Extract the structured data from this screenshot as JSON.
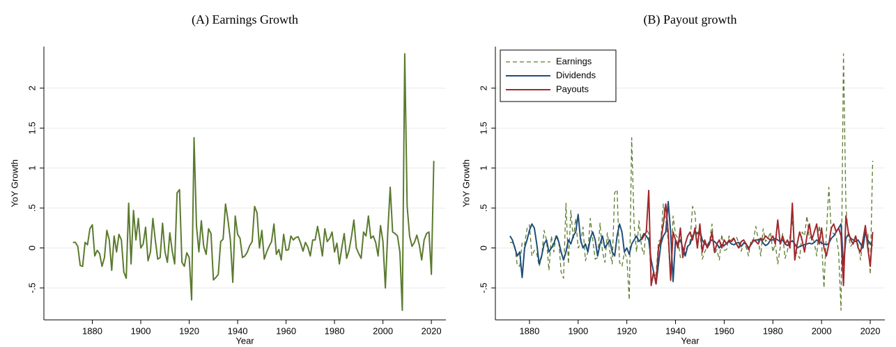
{
  "chart_data": [
    {
      "type": "line",
      "title": "(A) Earnings Growth",
      "xlabel": "Year",
      "ylabel": "YoY Growth",
      "x": [
        1872,
        1873,
        1874,
        1875,
        1876,
        1877,
        1878,
        1879,
        1880,
        1881,
        1882,
        1883,
        1884,
        1885,
        1886,
        1887,
        1888,
        1889,
        1890,
        1891,
        1892,
        1893,
        1894,
        1895,
        1896,
        1897,
        1898,
        1899,
        1900,
        1901,
        1902,
        1903,
        1904,
        1905,
        1906,
        1907,
        1908,
        1909,
        1910,
        1911,
        1912,
        1913,
        1914,
        1915,
        1916,
        1917,
        1918,
        1919,
        1920,
        1921,
        1922,
        1923,
        1924,
        1925,
        1926,
        1927,
        1928,
        1929,
        1930,
        1931,
        1932,
        1933,
        1934,
        1935,
        1936,
        1937,
        1938,
        1939,
        1940,
        1941,
        1942,
        1943,
        1944,
        1945,
        1946,
        1947,
        1948,
        1949,
        1950,
        1951,
        1952,
        1953,
        1954,
        1955,
        1956,
        1957,
        1958,
        1959,
        1960,
        1961,
        1962,
        1963,
        1964,
        1965,
        1966,
        1967,
        1968,
        1969,
        1970,
        1971,
        1972,
        1973,
        1974,
        1975,
        1976,
        1977,
        1978,
        1979,
        1980,
        1981,
        1982,
        1983,
        1984,
        1985,
        1986,
        1987,
        1988,
        1989,
        1990,
        1991,
        1992,
        1993,
        1994,
        1995,
        1996,
        1997,
        1998,
        1999,
        2000,
        2001,
        2002,
        2003,
        2004,
        2005,
        2006,
        2007,
        2008,
        2009,
        2010,
        2011,
        2012,
        2013,
        2014,
        2015,
        2016,
        2017,
        2018,
        2019,
        2020,
        2021
      ],
      "values": [
        0.07,
        0.07,
        0.02,
        -0.22,
        -0.23,
        0.07,
        0.04,
        0.24,
        0.29,
        -0.1,
        -0.03,
        -0.07,
        -0.23,
        -0.12,
        0.22,
        0.1,
        -0.28,
        0.15,
        -0.05,
        0.17,
        0.1,
        -0.3,
        -0.38,
        0.56,
        -0.2,
        0.47,
        0.1,
        0.37,
        0.0,
        0.05,
        0.26,
        -0.16,
        -0.05,
        0.37,
        0.1,
        -0.14,
        -0.12,
        0.31,
        -0.05,
        -0.18,
        0.19,
        -0.04,
        -0.2,
        0.69,
        0.73,
        -0.18,
        -0.23,
        -0.06,
        -0.12,
        -0.65,
        1.38,
        0.28,
        -0.05,
        0.34,
        0.02,
        -0.08,
        0.24,
        0.18,
        -0.4,
        -0.37,
        -0.33,
        0.08,
        0.11,
        0.55,
        0.35,
        0.1,
        -0.43,
        0.4,
        0.17,
        0.12,
        -0.12,
        -0.1,
        -0.05,
        0.03,
        0.08,
        0.52,
        0.44,
        0.0,
        0.22,
        -0.14,
        -0.05,
        0.02,
        0.08,
        0.3,
        -0.08,
        -0.02,
        -0.15,
        0.17,
        -0.03,
        -0.02,
        0.15,
        0.1,
        0.13,
        0.14,
        0.06,
        -0.04,
        0.07,
        0.01,
        -0.1,
        0.1,
        0.1,
        0.27,
        0.1,
        -0.1,
        0.24,
        0.08,
        0.12,
        0.2,
        -0.05,
        0.06,
        -0.2,
        0.0,
        0.18,
        -0.13,
        -0.03,
        0.14,
        0.35,
        0.0,
        -0.07,
        -0.13,
        0.2,
        0.15,
        0.4,
        0.12,
        0.15,
        0.07,
        -0.1,
        0.28,
        0.08,
        -0.5,
        0.2,
        0.76,
        0.2,
        0.18,
        0.15,
        -0.05,
        -0.78,
        2.43,
        0.52,
        0.15,
        0.02,
        0.07,
        0.16,
        0.04,
        -0.15,
        0.1,
        0.18,
        0.2,
        -0.33,
        1.09
      ],
      "color": "#5a7a2e",
      "xlim": [
        1860,
        2026
      ],
      "xticks": [
        1880,
        1900,
        1920,
        1940,
        1960,
        1980,
        2000,
        2020
      ],
      "ylim": [
        -0.9,
        2.52
      ],
      "yticks": [
        {
          "value": -0.5,
          "label": "-.5"
        },
        0,
        {
          "value": 0.5,
          "label": ".5"
        },
        1,
        {
          "value": 1.5,
          "label": "1.5"
        },
        2
      ],
      "grid": true
    },
    {
      "type": "line",
      "title": "(B) Payout growth",
      "xlabel": "Year",
      "ylabel": "YoY Growth",
      "x": [
        1872,
        1873,
        1874,
        1875,
        1876,
        1877,
        1878,
        1879,
        1880,
        1881,
        1882,
        1883,
        1884,
        1885,
        1886,
        1887,
        1888,
        1889,
        1890,
        1891,
        1892,
        1893,
        1894,
        1895,
        1896,
        1897,
        1898,
        1899,
        1900,
        1901,
        1902,
        1903,
        1904,
        1905,
        1906,
        1907,
        1908,
        1909,
        1910,
        1911,
        1912,
        1913,
        1914,
        1915,
        1916,
        1917,
        1918,
        1919,
        1920,
        1921,
        1922,
        1923,
        1924,
        1925,
        1926,
        1927,
        1928,
        1929,
        1930,
        1931,
        1932,
        1933,
        1934,
        1935,
        1936,
        1937,
        1938,
        1939,
        1940,
        1941,
        1942,
        1943,
        1944,
        1945,
        1946,
        1947,
        1948,
        1949,
        1950,
        1951,
        1952,
        1953,
        1954,
        1955,
        1956,
        1957,
        1958,
        1959,
        1960,
        1961,
        1962,
        1963,
        1964,
        1965,
        1966,
        1967,
        1968,
        1969,
        1970,
        1971,
        1972,
        1973,
        1974,
        1975,
        1976,
        1977,
        1978,
        1979,
        1980,
        1981,
        1982,
        1983,
        1984,
        1985,
        1986,
        1987,
        1988,
        1989,
        1990,
        1991,
        1992,
        1993,
        1994,
        1995,
        1996,
        1997,
        1998,
        1999,
        2000,
        2001,
        2002,
        2003,
        2004,
        2005,
        2006,
        2007,
        2008,
        2009,
        2010,
        2011,
        2012,
        2013,
        2014,
        2015,
        2016,
        2017,
        2018,
        2019,
        2020,
        2021
      ],
      "series": [
        {
          "name": "Earnings",
          "color": "#5a7a2e",
          "style": "dashed",
          "values": [
            0.07,
            0.07,
            0.02,
            -0.22,
            -0.23,
            0.07,
            0.04,
            0.24,
            0.29,
            -0.1,
            -0.03,
            -0.07,
            -0.23,
            -0.12,
            0.22,
            0.1,
            -0.28,
            0.15,
            -0.05,
            0.17,
            0.1,
            -0.3,
            -0.38,
            0.56,
            -0.2,
            0.47,
            0.1,
            0.37,
            0.0,
            0.05,
            0.26,
            -0.16,
            -0.05,
            0.37,
            0.1,
            -0.14,
            -0.12,
            0.31,
            -0.05,
            -0.18,
            0.19,
            -0.04,
            -0.2,
            0.69,
            0.73,
            -0.18,
            -0.23,
            -0.06,
            -0.12,
            -0.65,
            1.38,
            0.28,
            -0.05,
            0.34,
            0.02,
            -0.08,
            0.24,
            0.18,
            -0.4,
            -0.37,
            -0.33,
            0.08,
            0.11,
            0.55,
            0.35,
            0.1,
            -0.43,
            0.4,
            0.17,
            0.12,
            -0.12,
            -0.1,
            -0.05,
            0.03,
            0.08,
            0.52,
            0.44,
            0.0,
            0.22,
            -0.14,
            -0.05,
            0.02,
            0.08,
            0.3,
            -0.08,
            -0.02,
            -0.15,
            0.17,
            -0.03,
            -0.02,
            0.15,
            0.1,
            0.13,
            0.14,
            0.06,
            -0.04,
            0.07,
            0.01,
            -0.1,
            0.1,
            0.1,
            0.27,
            0.1,
            -0.1,
            0.24,
            0.08,
            0.12,
            0.2,
            -0.05,
            0.06,
            -0.2,
            0.0,
            0.18,
            -0.13,
            -0.03,
            0.14,
            0.35,
            0.0,
            -0.07,
            -0.13,
            0.2,
            0.15,
            0.4,
            0.12,
            0.15,
            0.07,
            -0.1,
            0.28,
            0.08,
            -0.5,
            0.2,
            0.76,
            0.2,
            0.18,
            0.15,
            -0.05,
            -0.78,
            2.43,
            0.52,
            0.15,
            0.02,
            0.07,
            0.16,
            0.04,
            -0.15,
            0.1,
            0.18,
            0.2,
            -0.33,
            1.09
          ]
        },
        {
          "name": "Dividends",
          "color": "#1f4e79",
          "style": "solid",
          "values": [
            0.15,
            0.1,
            0.0,
            -0.1,
            -0.05,
            -0.37,
            0.0,
            0.1,
            0.22,
            0.3,
            0.25,
            0.05,
            -0.2,
            -0.1,
            0.05,
            0.1,
            -0.05,
            0.0,
            0.05,
            0.15,
            0.08,
            -0.05,
            -0.15,
            -0.05,
            0.1,
            0.05,
            0.15,
            0.2,
            0.42,
            0.1,
            0.0,
            0.05,
            -0.05,
            0.12,
            0.2,
            0.1,
            -0.1,
            0.05,
            0.15,
            0.0,
            0.05,
            0.1,
            -0.05,
            -0.1,
            0.15,
            0.3,
            0.2,
            -0.05,
            0.0,
            -0.08,
            0.05,
            0.1,
            0.15,
            0.08,
            0.12,
            0.18,
            0.15,
            0.1,
            -0.15,
            -0.3,
            -0.45,
            -0.2,
            0.05,
            0.15,
            0.2,
            0.58,
            0.2,
            -0.42,
            0.1,
            0.05,
            0.1,
            0.0,
            -0.1,
            0.02,
            0.05,
            0.15,
            0.2,
            0.18,
            0.22,
            0.1,
            0.05,
            0.03,
            0.08,
            0.1,
            0.08,
            0.05,
            0.0,
            0.04,
            0.03,
            0.06,
            0.08,
            0.05,
            0.04,
            0.06,
            0.07,
            0.02,
            0.06,
            0.05,
            0.0,
            0.04,
            0.09,
            0.1,
            0.1,
            0.12,
            0.06,
            0.03,
            0.05,
            0.1,
            0.1,
            0.12,
            0.1,
            0.08,
            0.1,
            0.05,
            0.03,
            0.07,
            0.09,
            0.05,
            0.0,
            0.02,
            0.03,
            0.04,
            0.05,
            0.06,
            0.05,
            0.07,
            0.1,
            0.08,
            0.06,
            0.05,
            0.04,
            0.06,
            0.12,
            0.15,
            0.2,
            0.25,
            0.3,
            -0.22,
            0.12,
            0.17,
            0.12,
            0.1,
            0.08,
            0.1,
            0.05,
            0.0,
            0.2,
            0.1,
            0.05,
            0.03
          ]
        },
        {
          "name": "Payouts",
          "color": "#a0282d",
          "style": "solid",
          "values": [
            null,
            null,
            null,
            null,
            null,
            null,
            null,
            null,
            null,
            null,
            null,
            null,
            null,
            null,
            null,
            null,
            null,
            null,
            null,
            null,
            null,
            null,
            null,
            null,
            null,
            null,
            null,
            null,
            null,
            null,
            null,
            null,
            null,
            null,
            null,
            null,
            null,
            null,
            null,
            null,
            null,
            null,
            null,
            null,
            null,
            null,
            null,
            null,
            null,
            null,
            null,
            null,
            null,
            null,
            0.1,
            0.15,
            0.2,
            0.72,
            -0.47,
            -0.3,
            -0.45,
            0.0,
            0.1,
            0.3,
            0.55,
            0.2,
            -0.4,
            0.2,
            0.1,
            0.0,
            0.25,
            -0.12,
            0.05,
            0.15,
            0.2,
            0.1,
            0.25,
            0.0,
            0.3,
            -0.05,
            0.1,
            0.0,
            0.05,
            0.2,
            -0.05,
            0.05,
            0.1,
            0.0,
            0.1,
            0.05,
            0.1,
            0.08,
            0.12,
            0.05,
            0.0,
            0.08,
            0.1,
            0.05,
            -0.02,
            0.05,
            0.1,
            0.08,
            0.05,
            0.12,
            0.1,
            0.15,
            0.12,
            0.1,
            0.15,
            0.05,
            0.35,
            0.05,
            0.15,
            0.05,
            0.1,
            0.0,
            0.56,
            -0.15,
            0.05,
            0.2,
            0.1,
            -0.05,
            0.15,
            0.3,
            0.1,
            0.2,
            0.3,
            0.05,
            0.25,
            0.0,
            -0.1,
            0.05,
            0.25,
            0.3,
            0.2,
            0.25,
            0.15,
            -0.47,
            0.4,
            0.2,
            0.1,
            0.05,
            0.15,
            0.0,
            -0.05,
            0.1,
            0.28,
            0.0,
            -0.23,
            0.2
          ]
        }
      ],
      "legend": "top-left",
      "xlim": [
        1866,
        2026
      ],
      "xticks": [
        1880,
        1900,
        1920,
        1940,
        1960,
        1980,
        2000,
        2020
      ],
      "ylim": [
        -0.9,
        2.52
      ],
      "yticks": [
        {
          "value": -0.5,
          "label": "-.5"
        },
        0,
        {
          "value": 0.5,
          "label": ".5"
        },
        1,
        {
          "value": 1.5,
          "label": "1.5"
        },
        2
      ],
      "grid": true
    }
  ]
}
